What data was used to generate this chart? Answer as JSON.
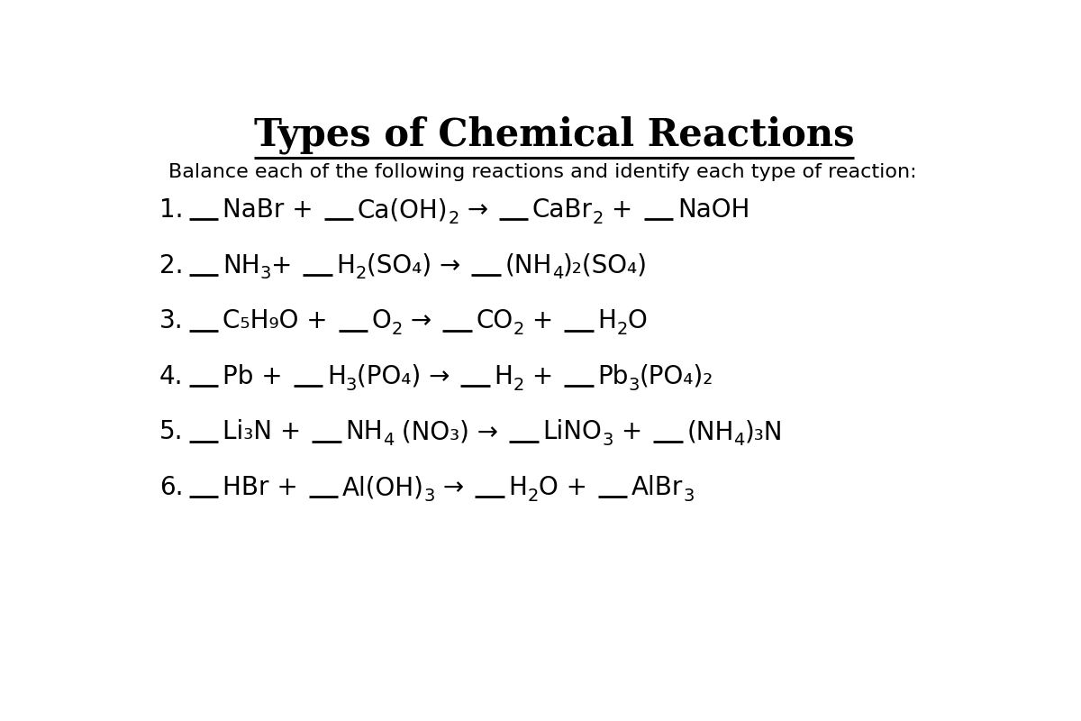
{
  "title": "Types of Chemical Reactions",
  "subtitle": "Balance each of the following reactions and identify each type of reaction:",
  "bg_color": "#ffffff",
  "title_fontsize": 30,
  "subtitle_fontsize": 16,
  "reaction_fontsize": 20,
  "sub_scale": 0.7,
  "reactions": [
    {
      "num": "1.",
      "items": [
        {
          "blank": true,
          "text": "NaBr + "
        },
        {
          "blank": true,
          "text": "Ca(OH)",
          "sub": "2",
          "after": " → "
        },
        {
          "blank": true,
          "text": "CaBr",
          "sub": "2",
          "after": " + "
        },
        {
          "blank": true,
          "text": "NaOH"
        }
      ]
    },
    {
      "num": "2.",
      "items": [
        {
          "blank": true,
          "text": "NH",
          "sub": "3",
          "after": "+ "
        },
        {
          "blank": true,
          "text": "H",
          "sub": "2",
          "after": "(SO₄) → "
        },
        {
          "blank": true,
          "text": "(NH",
          "sub": "4",
          "after": ")₂(SO₄)"
        }
      ]
    },
    {
      "num": "3.",
      "items": [
        {
          "blank": true,
          "text": "C₅H₉O + "
        },
        {
          "blank": true,
          "text": "O",
          "sub": "2",
          "after": " → "
        },
        {
          "blank": true,
          "text": "CO",
          "sub": "2",
          "after": " + "
        },
        {
          "blank": true,
          "text": "H",
          "sub": "2",
          "after": "O"
        }
      ]
    },
    {
      "num": "4.",
      "items": [
        {
          "blank": true,
          "text": "Pb + "
        },
        {
          "blank": true,
          "text": "H",
          "sub": "3",
          "after": "(PO₄) → "
        },
        {
          "blank": true,
          "text": "H",
          "sub": "2",
          "after": " + "
        },
        {
          "blank": true,
          "text": "Pb",
          "sub": "3",
          "after": "(PO₄)₂"
        }
      ]
    },
    {
      "num": "5.",
      "items": [
        {
          "blank": true,
          "text": "Li₃N + "
        },
        {
          "blank": true,
          "text": "NH",
          "sub": "4",
          "after": " (NO₃) → "
        },
        {
          "blank": true,
          "text": "LiNO",
          "sub": "3",
          "after": " + "
        },
        {
          "blank": true,
          "text": "(NH",
          "sub": "4",
          "after": ")₃N"
        }
      ]
    },
    {
      "num": "6.",
      "items": [
        {
          "blank": true,
          "text": "HBr + "
        },
        {
          "blank": true,
          "text": "Al(OH)",
          "sub": "3",
          "after": " → "
        },
        {
          "blank": true,
          "text": "H",
          "sub": "2",
          "after": "O + "
        },
        {
          "blank": true,
          "text": "AlBr",
          "sub": "3"
        }
      ]
    }
  ]
}
